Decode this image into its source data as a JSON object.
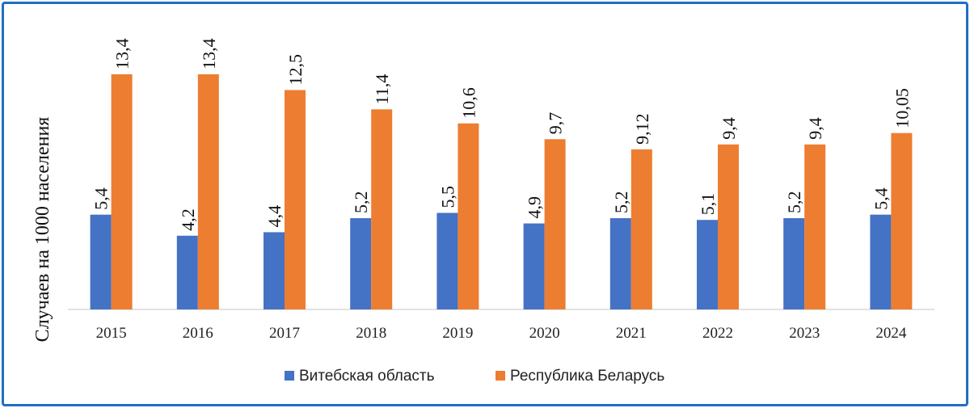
{
  "chart_data": {
    "type": "bar",
    "title": "",
    "xlabel": "",
    "ylabel": "Случаев на 1000 населения",
    "ylim": [
      0,
      14.5
    ],
    "grid": false,
    "legend_position": "bottom",
    "categories": [
      "2015",
      "2016",
      "2017",
      "2018",
      "2019",
      "2020",
      "2021",
      "2022",
      "2023",
      "2024"
    ],
    "series": [
      {
        "name": "Витебская область",
        "color": "#4472c4",
        "values": [
          5.4,
          4.2,
          4.4,
          5.2,
          5.5,
          4.9,
          5.2,
          5.1,
          5.2,
          5.4
        ],
        "labels": [
          "5,4",
          "4,2",
          "4,4",
          "5,2",
          "5,5",
          "4,9",
          "5,2",
          "5,1",
          "5,2",
          "5,4"
        ]
      },
      {
        "name": "Республика Беларусь",
        "color": "#ed7d31",
        "values": [
          13.4,
          13.4,
          12.5,
          11.4,
          10.6,
          9.7,
          9.12,
          9.4,
          9.4,
          10.05
        ],
        "labels": [
          "13,4",
          "13,4",
          "12,5",
          "11,4",
          "10,6",
          "9,7",
          "9,12",
          "9,4",
          "9,4",
          "10,05"
        ]
      }
    ]
  }
}
